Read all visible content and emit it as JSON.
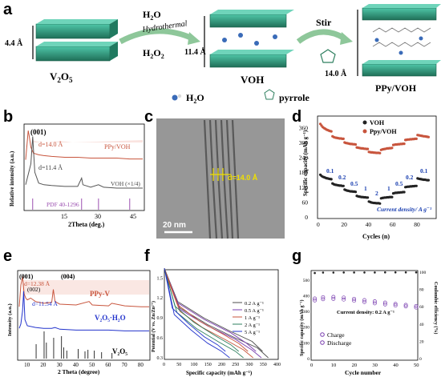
{
  "panel_a": {
    "letter": "a",
    "v2o5_label": "V",
    "v2o5_sub1": "2",
    "v2o5_mid": "O",
    "v2o5_sub2": "5",
    "v2o5_spacing": "4.4 Å",
    "arrow1_top": "H",
    "arrow1_top_sub": "2",
    "arrow1_top_end": "O",
    "arrow1_mid": "Hydrothermal",
    "arrow1_bottom": "H",
    "arrow1_bottom_sub1": "2",
    "arrow1_bottom_mid": "O",
    "arrow1_bottom_sub2": "2",
    "voh_label": "VOH",
    "voh_spacing": "11.4 Å",
    "arrow2_label": "Stir",
    "pyrrole_label": "pyrrole",
    "ppy_label": "PPy/VOH",
    "ppy_spacing": "14.0 Å",
    "legend_water": "H",
    "legend_water_sub": "2",
    "legend_water_end": "O",
    "legend_pyrrole": "pyrrole"
  },
  "panel_b": {
    "letter": "b",
    "peak_label": "(001)",
    "d1_label": "d=14.0 Å",
    "d2_label": "d=11.4 Å",
    "trace1_label": "PPy/VOH",
    "trace2_label": "VOH (×1/4)",
    "pdf_label": "PDF 40-1296",
    "ylabel": "Relative intensity (a.u.)",
    "xlabel": "2Theta (deg.)",
    "xticks": [
      "15",
      "30",
      "45"
    ],
    "colors": {
      "ppy": "#c8553d",
      "voh": "#555555",
      "pdf": "#9b4fb0"
    }
  },
  "panel_c": {
    "letter": "c",
    "d_label": "d=14.0 Å",
    "scale_label": "20 nm"
  },
  "panel_d": {
    "letter": "d",
    "legend": [
      "VOH",
      "Ppy/VOH"
    ],
    "ylabel": "Specific capacity (mAh g⁻¹)",
    "xlabel": "Cycles (n)",
    "rate_labels": [
      "0.1",
      "0.2",
      "0.5",
      "1",
      "2",
      "1",
      "0.5",
      "0.2",
      "0.1"
    ],
    "current_label": "Current density/ A g⁻¹",
    "colors": {
      "voh": "#222222",
      "ppy": "#c8553d"
    }
  },
  "panel_e": {
    "letter": "e",
    "peak1": "(001)",
    "d1": "d=12.38 Å",
    "peak2": "(002)",
    "peak3": "(004)",
    "d2": "d=11.54 Å",
    "trace1": "PPy-V",
    "trace2": "V₂O₅·H₂O",
    "trace3": "V₂O₅",
    "ylabel": "Intensity (a.u.)",
    "xlabel": "2 Theta (degree)",
    "xticks": [
      "10",
      "20",
      "30",
      "40",
      "50",
      "60",
      "70",
      "80"
    ],
    "colors": {
      "ppy": "#c8553d",
      "vh": "#2233cc",
      "v": "#333333"
    }
  },
  "panel_f": {
    "letter": "f",
    "ylabel": "Potential (V vs. Zn/Zn²⁺)",
    "xlabel": "Specific capacity (mAh g⁻¹)",
    "xticks": [
      "0",
      "50",
      "100",
      "150",
      "200",
      "250",
      "300",
      "350",
      "400"
    ],
    "yticks": [
      "0.3",
      "0.6",
      "0.9",
      "1.2",
      "1.5"
    ],
    "legend": [
      "0.2 A g⁻¹",
      "0.5 A g⁻¹",
      "1 A g⁻¹",
      "2 A g⁻¹",
      "5 A g⁻¹"
    ]
  },
  "panel_g": {
    "letter": "g",
    "ylabel_left": "Specific capacity (mAh g⁻¹)",
    "ylabel_right": "Coulombic efficiency (%)",
    "xlabel": "Cycle number",
    "current_label": "Current density:  0.2 A g⁻¹",
    "legend": [
      "Charge",
      "Discharge"
    ],
    "xticks": [
      "0",
      "10",
      "20",
      "30",
      "40",
      "50"
    ],
    "yticks_left": [
      "0",
      "50",
      "100",
      "150",
      "200",
      "250",
      "300",
      "350",
      "400",
      "450",
      "500",
      "550"
    ],
    "yticks_right": [
      "0",
      "20",
      "40",
      "60",
      "80",
      "100"
    ],
    "colors": {
      "cap": "#7a3fb0",
      "ce": "#222222"
    }
  },
  "chart_data": [
    {
      "type": "line",
      "panel": "b",
      "xlabel": "2Theta (deg.)",
      "ylabel": "Relative intensity (a.u.)",
      "xlim": [
        5,
        50
      ],
      "series": [
        {
          "name": "PPy/VOH",
          "x": [
            5,
            6,
            6.3,
            7,
            8,
            10,
            12,
            15,
            20,
            25,
            30,
            35,
            40,
            45,
            50
          ],
          "y": [
            0.6,
            0.95,
            0.9,
            0.75,
            0.68,
            0.66,
            0.65,
            0.64,
            0.63,
            0.63,
            0.62,
            0.62,
            0.62,
            0.61,
            0.61
          ]
        },
        {
          "name": "VOH (×1/4)",
          "x": [
            5,
            7,
            7.7,
            8.5,
            10,
            12,
            15,
            20,
            25,
            26.5,
            27,
            30,
            33,
            35,
            40,
            45,
            50
          ],
          "y": [
            0.3,
            0.55,
            0.88,
            0.45,
            0.32,
            0.3,
            0.29,
            0.28,
            0.28,
            0.38,
            0.3,
            0.27,
            0.3,
            0.27,
            0.26,
            0.26,
            0.26
          ]
        }
      ],
      "reference": {
        "name": "PDF 40-1296",
        "x": [
          7.7,
          26.5,
          33,
          45
        ]
      }
    },
    {
      "type": "scatter",
      "panel": "d",
      "xlabel": "Cycles (n)",
      "ylabel": "Specific capacity (mAh g⁻¹)",
      "xlim": [
        0,
        95
      ],
      "ylim": [
        0,
        400
      ],
      "series": [
        {
          "name": "VOH",
          "x": [
            1,
            2,
            3,
            4,
            5,
            6,
            7,
            8,
            9,
            10,
            11,
            12,
            13,
            14,
            15,
            16,
            17,
            18,
            19,
            20,
            21,
            22,
            23,
            24,
            25,
            26,
            27,
            28,
            29,
            30,
            31,
            32,
            33,
            34,
            35,
            36,
            37,
            38,
            39,
            40,
            41,
            42,
            43,
            44,
            45,
            46,
            47,
            48,
            49,
            50,
            51,
            52,
            53,
            54,
            55,
            56,
            57,
            58,
            59,
            60,
            61,
            62,
            63,
            64,
            65,
            66,
            67,
            68,
            69,
            70,
            71,
            72,
            73,
            74,
            75,
            76,
            77,
            78,
            79,
            80,
            81,
            82,
            83,
            84,
            85,
            86,
            87,
            88,
            89,
            90
          ],
          "y": [
            170,
            165,
            162,
            160,
            158,
            156,
            155,
            154,
            153,
            152,
            135,
            132,
            130,
            129,
            128,
            127,
            126,
            126,
            125,
            125,
            110,
            108,
            106,
            105,
            104,
            103,
            103,
            102,
            102,
            101,
            85,
            83,
            82,
            81,
            80,
            80,
            79,
            79,
            78,
            78,
            62,
            60,
            58,
            57,
            56,
            56,
            55,
            55,
            55,
            54,
            75,
            76,
            77,
            78,
            78,
            79,
            79,
            80,
            80,
            80,
            95,
            96,
            97,
            97,
            98,
            98,
            99,
            99,
            100,
            100,
            120,
            121,
            122,
            122,
            123,
            123,
            124,
            124,
            125,
            125,
            155,
            154,
            153,
            152,
            151,
            150,
            150,
            149,
            148,
            148
          ]
        },
        {
          "name": "Ppy/VOH",
          "x": [
            1,
            2,
            3,
            4,
            5,
            6,
            7,
            8,
            9,
            10,
            11,
            12,
            13,
            14,
            15,
            16,
            17,
            18,
            19,
            20,
            21,
            22,
            23,
            24,
            25,
            26,
            27,
            28,
            29,
            30,
            31,
            32,
            33,
            34,
            35,
            36,
            37,
            38,
            39,
            40,
            41,
            42,
            43,
            44,
            45,
            46,
            47,
            48,
            49,
            50,
            51,
            52,
            53,
            54,
            55,
            56,
            57,
            58,
            59,
            60,
            61,
            62,
            63,
            64,
            65,
            66,
            67,
            68,
            69,
            70,
            71,
            72,
            73,
            74,
            75,
            76,
            77,
            78,
            79,
            80,
            81,
            82,
            83,
            84,
            85,
            86,
            87,
            88,
            89,
            90
          ],
          "y": [
            375,
            368,
            362,
            358,
            355,
            352,
            350,
            348,
            346,
            345,
            325,
            322,
            320,
            319,
            318,
            317,
            316,
            316,
            315,
            315,
            300,
            298,
            297,
            296,
            295,
            294,
            294,
            293,
            293,
            292,
            280,
            279,
            278,
            277,
            276,
            276,
            275,
            275,
            274,
            274,
            262,
            261,
            260,
            260,
            259,
            259,
            258,
            258,
            258,
            257,
            270,
            272,
            273,
            274,
            275,
            276,
            276,
            277,
            277,
            278,
            290,
            291,
            292,
            292,
            293,
            293,
            294,
            294,
            295,
            295,
            310,
            311,
            312,
            312,
            313,
            313,
            314,
            314,
            315,
            315,
            330,
            329,
            328,
            327,
            326,
            325,
            325,
            324,
            323,
            322
          ]
        }
      ]
    },
    {
      "type": "line",
      "panel": "e",
      "xlabel": "2 Theta (degree)",
      "ylabel": "Intensity (a.u.)",
      "xlim": [
        5,
        85
      ],
      "series": [
        {
          "name": "PPy-V",
          "x": [
            5,
            6,
            7,
            8,
            9,
            10,
            12,
            15,
            20,
            25,
            26,
            27,
            30,
            40,
            48,
            50,
            60,
            62,
            70,
            80,
            85
          ],
          "y": [
            0.6,
            0.85,
            0.95,
            0.75,
            0.7,
            0.68,
            0.7,
            0.66,
            0.64,
            0.65,
            0.8,
            0.66,
            0.63,
            0.62,
            0.66,
            0.62,
            0.61,
            0.64,
            0.61,
            0.6,
            0.6
          ]
        },
        {
          "name": "V₂O₅·H₂O",
          "x": [
            5,
            6,
            7,
            7.7,
            8.5,
            10,
            15,
            20,
            25,
            27,
            30,
            40,
            50,
            60,
            70,
            80,
            85
          ],
          "y": [
            0.35,
            0.4,
            0.55,
            0.78,
            0.45,
            0.38,
            0.36,
            0.35,
            0.35,
            0.36,
            0.34,
            0.33,
            0.33,
            0.33,
            0.32,
            0.32,
            0.32
          ]
        }
      ],
      "reference": {
        "name": "V₂O₅",
        "x": [
          15.4,
          20.3,
          21.7,
          26.2,
          31.0,
          32.4,
          34.3,
          41.3,
          45.5,
          47.3,
          51.2,
          55.7,
          62.1
        ]
      }
    },
    {
      "type": "line",
      "panel": "f",
      "xlabel": "Specific capacity (mAh g⁻¹)",
      "ylabel": "Potential (V vs. Zn/Zn²⁺)",
      "xlim": [
        0,
        400
      ],
      "ylim": [
        0.3,
        1.6
      ],
      "series": [
        {
          "name": "0.2 A g⁻¹",
          "x": [
            0,
            50,
            150,
            250,
            330,
            370
          ],
          "y": [
            1.55,
            1.05,
            0.8,
            0.6,
            0.45,
            0.3
          ]
        },
        {
          "name": "0.5 A g⁻¹",
          "x": [
            0,
            50,
            150,
            250,
            310,
            345
          ],
          "y": [
            1.55,
            1.03,
            0.78,
            0.58,
            0.42,
            0.3
          ]
        },
        {
          "name": "1 A g⁻¹",
          "x": [
            0,
            50,
            130,
            220,
            280,
            315
          ],
          "y": [
            1.55,
            1.0,
            0.76,
            0.56,
            0.42,
            0.3
          ]
        },
        {
          "name": "2 A g⁻¹",
          "x": [
            0,
            40,
            110,
            190,
            250,
            280
          ],
          "y": [
            1.55,
            0.98,
            0.74,
            0.54,
            0.4,
            0.3
          ]
        },
        {
          "name": "5 A g⁻¹",
          "x": [
            0,
            30,
            90,
            150,
            200,
            230
          ],
          "y": [
            1.55,
            0.95,
            0.72,
            0.52,
            0.4,
            0.3
          ]
        }
      ]
    },
    {
      "type": "scatter",
      "panel": "g",
      "xlabel": "Cycle number",
      "ylabel": "Specific capacity (mAh g⁻¹)",
      "y2label": "Coulombic efficiency (%)",
      "xlim": [
        0,
        50
      ],
      "ylim": [
        0,
        550
      ],
      "y2lim": [
        0,
        100
      ],
      "series": [
        {
          "name": "Charge",
          "x": [
            1,
            5,
            10,
            15,
            20,
            25,
            30,
            35,
            40,
            45,
            50
          ],
          "y": [
            370,
            378,
            380,
            376,
            368,
            360,
            352,
            345,
            338,
            332,
            325
          ]
        },
        {
          "name": "Discharge",
          "x": [
            1,
            5,
            10,
            15,
            20,
            25,
            30,
            35,
            40,
            45,
            50
          ],
          "y": [
            382,
            390,
            392,
            388,
            380,
            372,
            364,
            356,
            348,
            341,
            334
          ]
        },
        {
          "name": "Coulombic efficiency",
          "x": [
            1,
            5,
            10,
            15,
            20,
            25,
            30,
            35,
            40,
            45,
            50
          ],
          "y": [
            99,
            99.5,
            99.5,
            99.6,
            99.6,
            99.6,
            99.6,
            99.7,
            99.7,
            99.7,
            99.7
          ]
        }
      ]
    }
  ]
}
